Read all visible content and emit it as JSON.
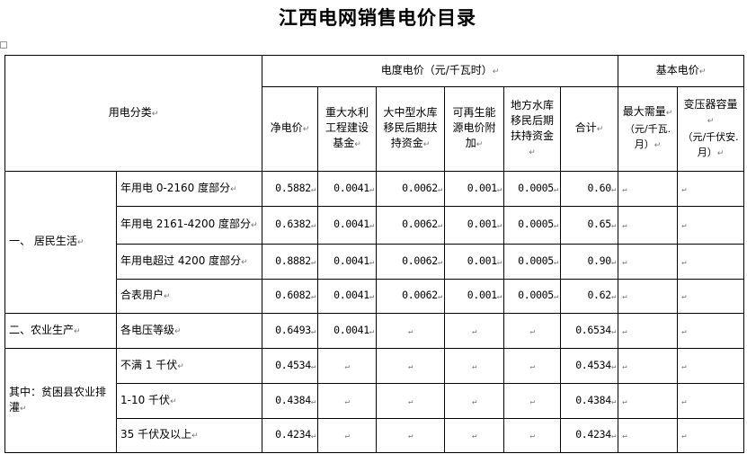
{
  "title": "江西电网销售电价目录",
  "header": {
    "category": "用电分类",
    "energy_price": "电度电价（元/千瓦时）",
    "basic_price": "基本电价",
    "columns": [
      "净电价",
      "重大水利工程建设基金",
      "大中型水库移民后期扶持资金",
      "可再生能源电价附加",
      "地方水库移民后期扶持资金",
      "合计"
    ],
    "max_demand": "最大需量",
    "max_demand_unit": "（元/千瓦.月）",
    "transformer": "变压器容量",
    "transformer_unit": "（元/千伏安.月）"
  },
  "groups": [
    {
      "name": "一、 居民生活",
      "rows": [
        {
          "sub": "年用电 0-2160 度部分",
          "values": [
            "0.5882",
            "0.0041",
            "0.0062",
            "0.001",
            "0.0005",
            "0.60",
            "",
            ""
          ]
        },
        {
          "sub": "年用电 2161-4200 度部分",
          "values": [
            "0.6382",
            "0.0041",
            "0.0062",
            "0.001",
            "0.0005",
            "0.65",
            "",
            ""
          ]
        },
        {
          "sub": "年用电超过 4200 度部分",
          "values": [
            "0.8882",
            "0.0041",
            "0.0062",
            "0.001",
            "0.0005",
            "0.90",
            "",
            ""
          ]
        },
        {
          "sub": "合表用户",
          "values": [
            "0.6082",
            "0.0041",
            "0.0062",
            "0.001",
            "0.0005",
            "0.62",
            "",
            ""
          ]
        }
      ]
    },
    {
      "name": "二、农业生产",
      "rows": [
        {
          "sub": "各电压等级",
          "values": [
            "0.6493",
            "0.0041",
            "",
            "",
            "",
            "0.6534",
            "",
            ""
          ]
        }
      ]
    },
    {
      "name": "其中：贫困县农业排灌",
      "rows": [
        {
          "sub": "不满 1 千伏",
          "values": [
            "0.4534",
            "",
            "",
            "",
            "",
            "0.4534",
            "",
            ""
          ]
        },
        {
          "sub": "1-10 千伏",
          "values": [
            "0.4384",
            "",
            "",
            "",
            "",
            "0.4384",
            "",
            ""
          ]
        },
        {
          "sub": "35 千伏及以上",
          "values": [
            "0.4234",
            "",
            "",
            "",
            "",
            "0.4234",
            "",
            ""
          ]
        }
      ]
    }
  ]
}
